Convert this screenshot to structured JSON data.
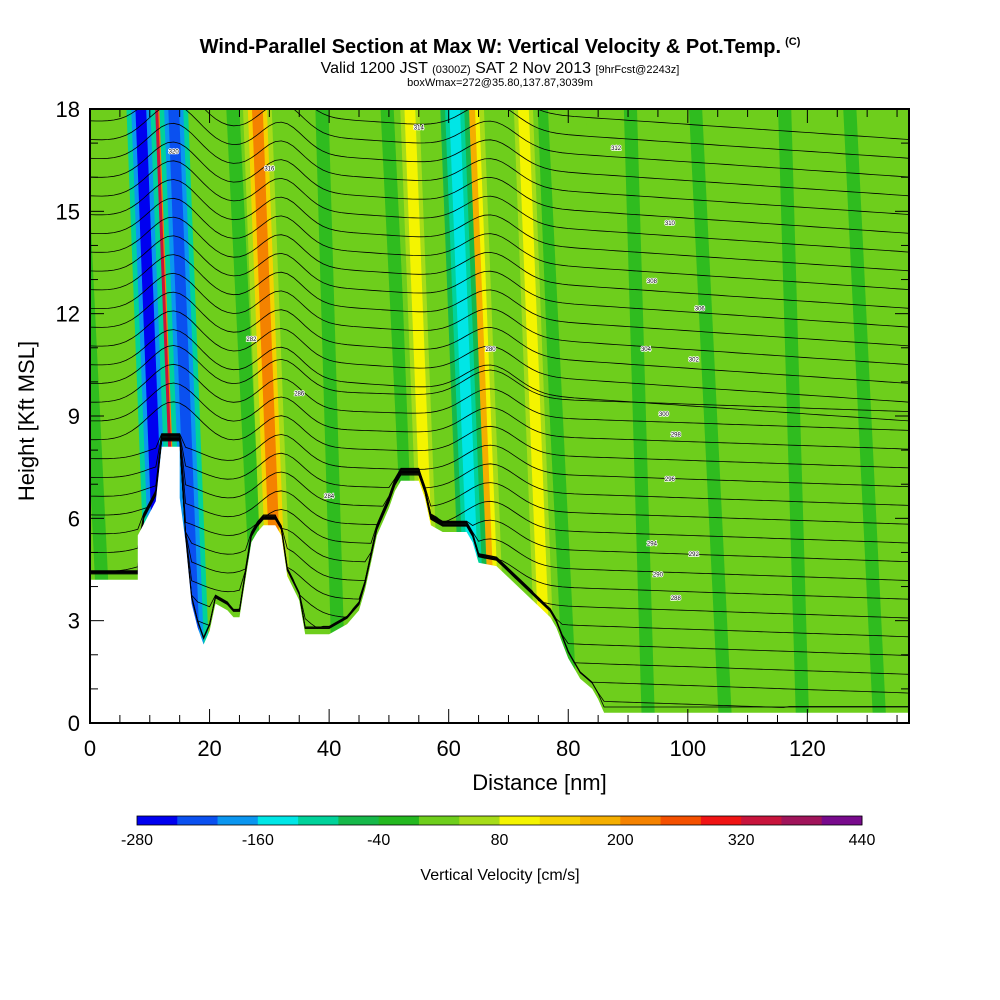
{
  "header": {
    "title": "Wind-Parallel Section at Max W: Vertical Velocity & Pot.Temp.",
    "title_mark": "(C)",
    "subtitle_a": "Valid 1200 JST ",
    "subtitle_b": "(0300Z)",
    "subtitle_c": " SAT 2 Nov 2013 ",
    "subtitle_d": "[9hrFcst@2243z]",
    "subtitle2": "boxWmax=272@35.80,137.87,3039m"
  },
  "chart_data": {
    "type": "heatmap",
    "xlabel": "Distance [nm]",
    "ylabel": "Height [Kft MSL]",
    "xlim": [
      0,
      137
    ],
    "ylim": [
      0,
      18
    ],
    "xticks": [
      0,
      20,
      40,
      60,
      80,
      100,
      120
    ],
    "yticks": [
      0,
      3,
      6,
      9,
      12,
      15,
      18
    ],
    "colorbar": {
      "label": "Vertical Velocity [cm/s]",
      "range": [
        -280,
        440
      ],
      "step": 40,
      "tick_labels": [
        "-280",
        "-160",
        "-40",
        "80",
        "200",
        "320",
        "440"
      ],
      "colors": [
        "#0000f0",
        "#0a50f0",
        "#0a96f0",
        "#00e6e6",
        "#00d29a",
        "#16b84a",
        "#24b820",
        "#6ece1c",
        "#a6dc18",
        "#f4f400",
        "#f4d200",
        "#f4ae00",
        "#f48200",
        "#f45000",
        "#f01414",
        "#c8143c",
        "#a0145a",
        "#780a8c"
      ]
    },
    "terrain_kft": [
      [
        0,
        4.2
      ],
      [
        8,
        4.2
      ],
      [
        8,
        5.5
      ],
      [
        11,
        6.5
      ],
      [
        12,
        8.1
      ],
      [
        15,
        8.1
      ],
      [
        15,
        6.6
      ],
      [
        16,
        5.3
      ],
      [
        17,
        3.5
      ],
      [
        18,
        2.8
      ],
      [
        19,
        2.3
      ],
      [
        20,
        2.7
      ],
      [
        21,
        3.5
      ],
      [
        23,
        3.3
      ],
      [
        24,
        3.1
      ],
      [
        25,
        3.1
      ],
      [
        26,
        4.2
      ],
      [
        27,
        5.3
      ],
      [
        28,
        5.6
      ],
      [
        29,
        5.8
      ],
      [
        31,
        5.8
      ],
      [
        32,
        5.5
      ],
      [
        33,
        4.3
      ],
      [
        35,
        3.6
      ],
      [
        36,
        2.6
      ],
      [
        40,
        2.6
      ],
      [
        43,
        2.9
      ],
      [
        45,
        3.3
      ],
      [
        46,
        3.9
      ],
      [
        47,
        4.7
      ],
      [
        48,
        5.5
      ],
      [
        50,
        6.3
      ],
      [
        51,
        6.8
      ],
      [
        52,
        7.1
      ],
      [
        55,
        7.1
      ],
      [
        56,
        6.6
      ],
      [
        57,
        5.8
      ],
      [
        59,
        5.6
      ],
      [
        63,
        5.6
      ],
      [
        64,
        5.3
      ],
      [
        65,
        4.7
      ],
      [
        68,
        4.6
      ],
      [
        71,
        4.1
      ],
      [
        74,
        3.6
      ],
      [
        77,
        3.1
      ],
      [
        78,
        2.8
      ],
      [
        80,
        1.9
      ],
      [
        81,
        1.6
      ],
      [
        82,
        1.3
      ],
      [
        84,
        1.0
      ],
      [
        85,
        0.7
      ],
      [
        86,
        0.3
      ],
      [
        137,
        0.3
      ]
    ],
    "updrafts": [
      {
        "x": 14.0,
        "w": 320
      },
      {
        "x": 31.5,
        "w": 200
      },
      {
        "x": 57.0,
        "w": 80
      },
      {
        "x": 67.0,
        "w": 160
      },
      {
        "x": 76.0,
        "w": 80
      }
    ],
    "downdrafts": [
      {
        "x": 12.0,
        "w": -280
      },
      {
        "x": 17.5,
        "w": -240
      },
      {
        "x": 64.5,
        "w": -160
      }
    ],
    "contour_labels": [
      "320",
      "316",
      "314",
      "312",
      "310",
      "308",
      "306",
      "304",
      "302",
      "300",
      "298",
      "296",
      "294",
      "292",
      "290",
      "288",
      "286",
      "284",
      "282",
      "280"
    ]
  }
}
